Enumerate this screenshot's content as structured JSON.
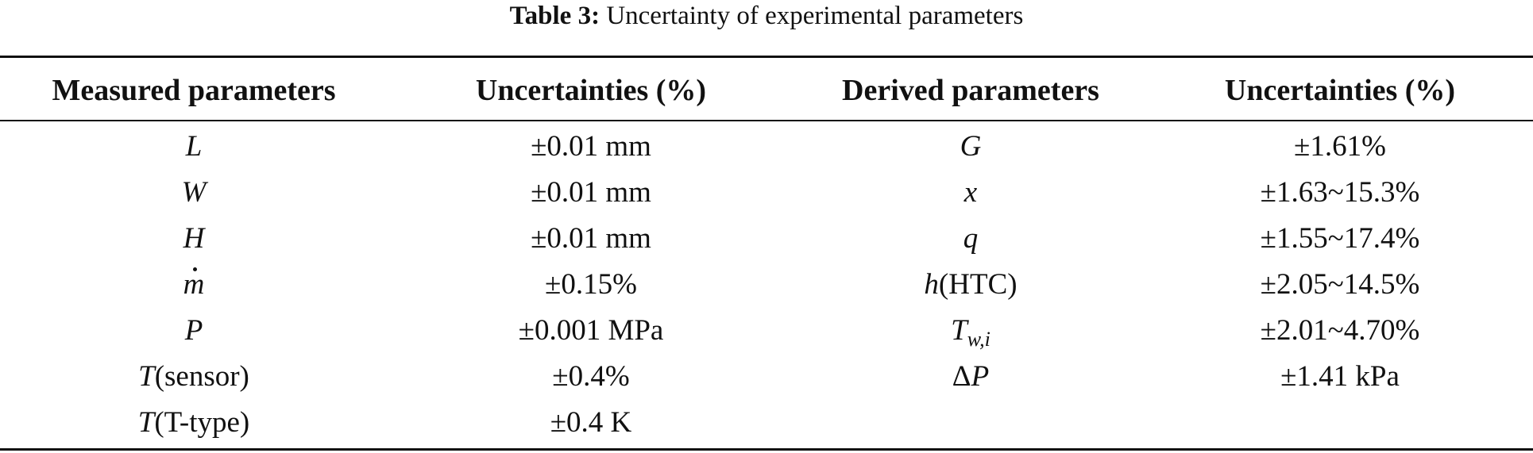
{
  "caption": {
    "label": "Table 3:",
    "text": "Uncertainty of experimental parameters"
  },
  "table": {
    "headers": [
      "Measured parameters",
      "Uncertainties (%)",
      "Derived parameters",
      "Uncertainties (%)"
    ],
    "rows": [
      {
        "measured": {
          "symbol": "L",
          "sub": "",
          "suffix": ""
        },
        "measured_uncertainty": "±0.01 mm",
        "derived": {
          "prefix": "",
          "symbol": "G",
          "sub": "",
          "suffix": ""
        },
        "derived_uncertainty": "±1.61%"
      },
      {
        "measured": {
          "symbol": "W",
          "sub": "",
          "suffix": ""
        },
        "measured_uncertainty": "±0.01 mm",
        "derived": {
          "prefix": "",
          "symbol": "x",
          "sub": "",
          "suffix": ""
        },
        "derived_uncertainty": "±1.63~15.3%"
      },
      {
        "measured": {
          "symbol": "H",
          "sub": "",
          "suffix": ""
        },
        "measured_uncertainty": "±0.01 mm",
        "derived": {
          "prefix": "",
          "symbol": "q",
          "sub": "",
          "suffix": ""
        },
        "derived_uncertainty": "±1.55~17.4%"
      },
      {
        "measured": {
          "symbol": "m",
          "dot": true,
          "sub": "",
          "suffix": ""
        },
        "measured_uncertainty": "±0.15%",
        "derived": {
          "prefix": "",
          "symbol": "h",
          "sub": "",
          "suffix": "(HTC)"
        },
        "derived_uncertainty": "±2.05~14.5%"
      },
      {
        "measured": {
          "symbol": "P",
          "sub": "",
          "suffix": ""
        },
        "measured_uncertainty": "±0.001 MPa",
        "derived": {
          "prefix": "",
          "symbol": "T",
          "sub": "w,i",
          "suffix": ""
        },
        "derived_uncertainty": "±2.01~4.70%"
      },
      {
        "measured": {
          "symbol": "T",
          "sub": "",
          "suffix": "(sensor)"
        },
        "measured_uncertainty": "±0.4%",
        "derived": {
          "prefix": "Δ",
          "symbol": "P",
          "sub": "",
          "suffix": ""
        },
        "derived_uncertainty": "±1.41 kPa"
      },
      {
        "measured": {
          "symbol": "T",
          "sub": "",
          "suffix": "(T-type)"
        },
        "measured_uncertainty": "±0.4 K",
        "derived": {
          "prefix": "",
          "symbol": "",
          "sub": "",
          "suffix": ""
        },
        "derived_uncertainty": ""
      }
    ]
  }
}
